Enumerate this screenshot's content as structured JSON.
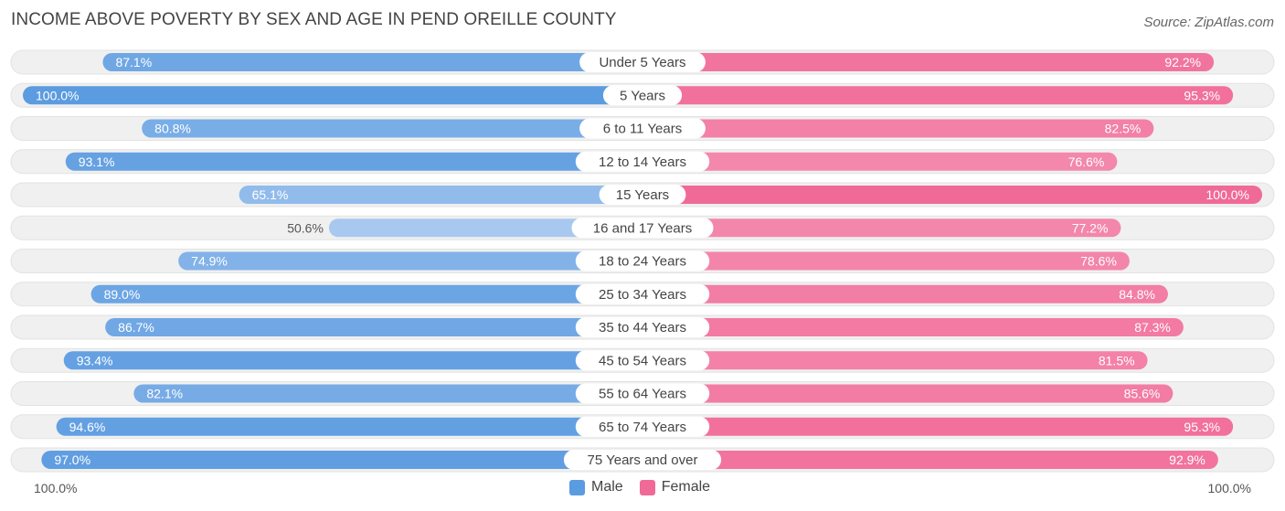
{
  "header": {
    "title": "INCOME ABOVE POVERTY BY SEX AND AGE IN PEND OREILLE COUNTY",
    "source": "Source: ZipAtlas.com"
  },
  "axis": {
    "left_label": "100.0%",
    "right_label": "100.0%"
  },
  "legend": {
    "male_label": "Male",
    "female_label": "Female"
  },
  "colors": {
    "male_dark": "#5b9be0",
    "male_light": "#a9c9f0",
    "female_dark": "#f06a98",
    "female_light": "#f7a8c2",
    "track": "#f0f0f0"
  },
  "chart_data": {
    "type": "bar",
    "orientation": "horizontal-diverging",
    "title": "INCOME ABOVE POVERTY BY SEX AND AGE IN PEND OREILLE COUNTY",
    "xlim": [
      0,
      100
    ],
    "categories": [
      "Under 5 Years",
      "5 Years",
      "6 to 11 Years",
      "12 to 14 Years",
      "15 Years",
      "16 and 17 Years",
      "18 to 24 Years",
      "25 to 34 Years",
      "35 to 44 Years",
      "45 to 54 Years",
      "55 to 64 Years",
      "65 to 74 Years",
      "75 Years and over"
    ],
    "series": [
      {
        "name": "Male",
        "values": [
          87.1,
          100.0,
          80.8,
          93.1,
          65.1,
          50.6,
          74.9,
          89.0,
          86.7,
          93.4,
          82.1,
          94.6,
          97.0
        ],
        "labels": [
          "87.1%",
          "100.0%",
          "80.8%",
          "93.1%",
          "65.1%",
          "50.6%",
          "74.9%",
          "89.0%",
          "86.7%",
          "93.4%",
          "82.1%",
          "94.6%",
          "97.0%"
        ]
      },
      {
        "name": "Female",
        "values": [
          92.2,
          95.3,
          82.5,
          76.6,
          100.0,
          77.2,
          78.6,
          84.8,
          87.3,
          81.5,
          85.6,
          95.3,
          92.9
        ],
        "labels": [
          "92.2%",
          "95.3%",
          "82.5%",
          "76.6%",
          "100.0%",
          "77.2%",
          "78.6%",
          "84.8%",
          "87.3%",
          "81.5%",
          "85.6%",
          "95.3%",
          "92.9%"
        ]
      }
    ],
    "legend_position": "bottom-center"
  }
}
